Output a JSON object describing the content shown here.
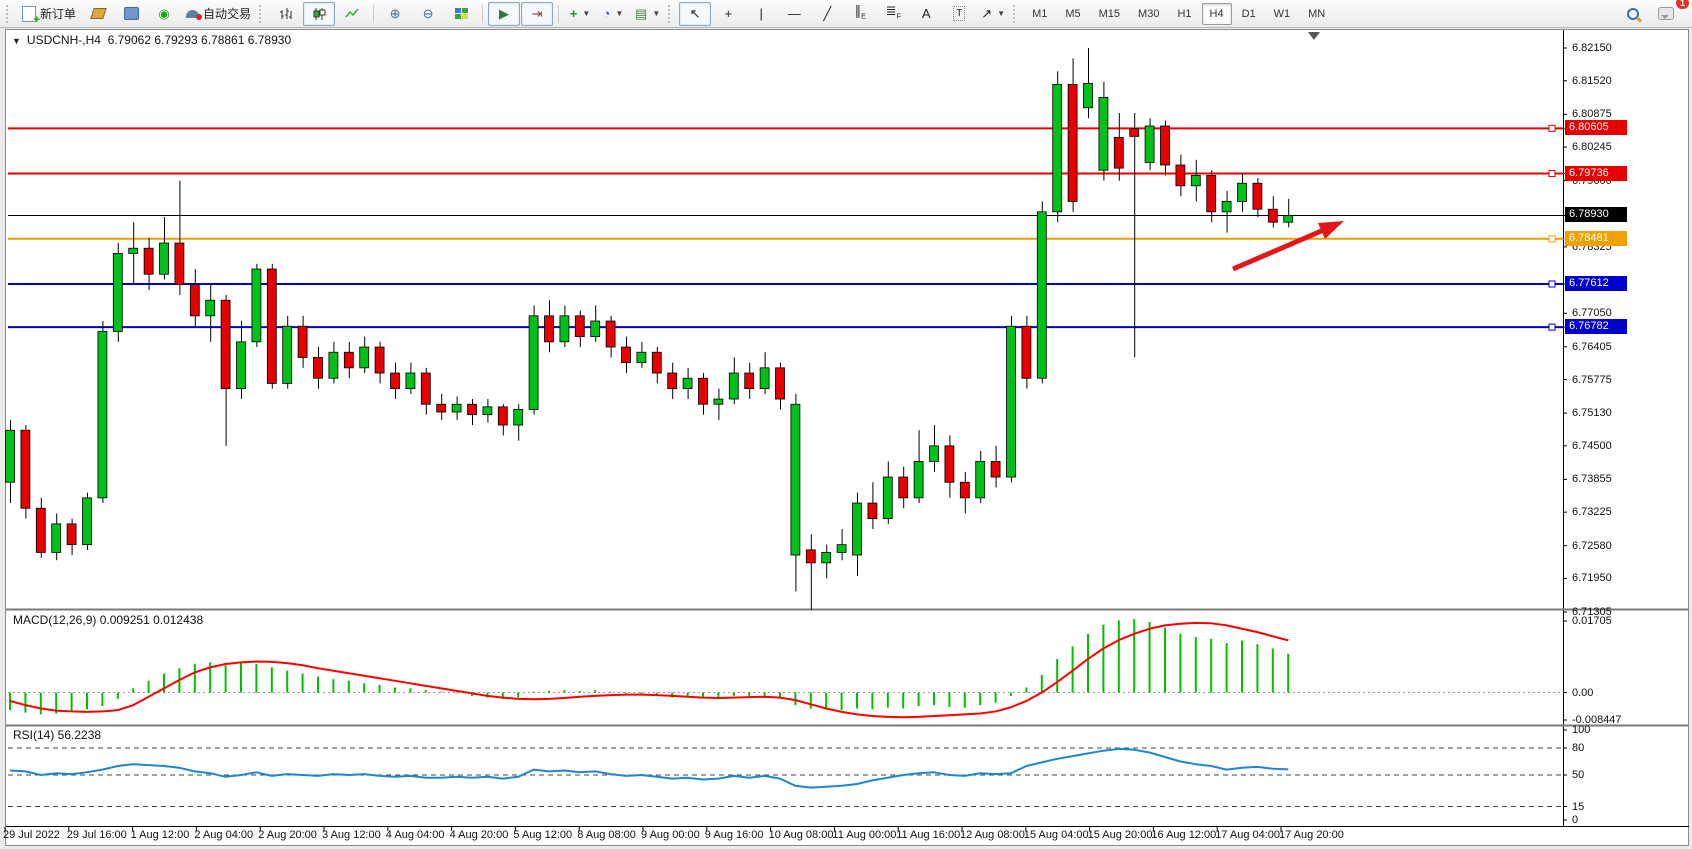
{
  "toolbar": {
    "new_order_label": "新订单",
    "autotrading_label": "自动交易",
    "timeframes": [
      "M1",
      "M5",
      "M15",
      "M30",
      "H1",
      "H4",
      "D1",
      "W1",
      "MN"
    ],
    "active_timeframe": "H4",
    "notification_count": "1"
  },
  "chart_header": {
    "title": "USDCNH-,H4",
    "quotes": "6.79062 6.79293 6.78861 6.78930"
  },
  "indicators": {
    "macd_label": "MACD(12,26,9) 0.009251 0.012438",
    "rsi_label": "RSI(14) 56.2238"
  },
  "colors": {
    "up": "#00c01a",
    "down": "#e60000",
    "macd_hist": "#00c000",
    "macd_signal": "#ff0000",
    "rsi_line": "#1e87cf",
    "arrow": "#e01818"
  },
  "chart_data": {
    "type": "candlestick",
    "symbol": "USDCNH-",
    "timeframe": "H4",
    "current_bar": {
      "open": "6.79062",
      "high": "6.79293",
      "low": "6.78861",
      "close": "6.78930"
    },
    "current_price": 6.7893,
    "ylim": [
      6.71305,
      6.8215
    ],
    "price_axis_ticks": [
      "6.82150",
      "6.81520",
      "6.80875",
      "6.80245",
      "6.79600",
      "6.78325",
      "6.77050",
      "6.76405",
      "6.75775",
      "6.75130",
      "6.74500",
      "6.73855",
      "6.73225",
      "6.72580",
      "6.71950",
      "6.71305"
    ],
    "levels": [
      {
        "label": "6.80605",
        "price": 6.80605,
        "color": "#e60000",
        "width": 2,
        "handle": true
      },
      {
        "label": "6.79736",
        "price": 6.79736,
        "color": "#e60000",
        "width": 2,
        "handle": true
      },
      {
        "label": "6.78930",
        "price": 6.7893,
        "color": "#000000",
        "width": 1,
        "handle": false
      },
      {
        "label": "6.78481",
        "price": 6.78481,
        "color": "#f0a000",
        "width": 2,
        "handle": true
      },
      {
        "label": "6.77612",
        "price": 6.77612,
        "color": "#0000cc",
        "width": 2,
        "handle": true
      },
      {
        "label": "6.76782",
        "price": 6.76782,
        "color": "#0000cc",
        "width": 2,
        "handle": true
      }
    ],
    "time_labels": [
      "29 Jul 2022",
      "29 Jul 16:00",
      "1 Aug 12:00",
      "2 Aug 04:00",
      "2 Aug 20:00",
      "3 Aug 12:00",
      "4 Aug 04:00",
      "4 Aug 20:00",
      "5 Aug 12:00",
      "8 Aug 08:00",
      "9 Aug 00:00",
      "9 Aug 16:00",
      "10 Aug 08:00",
      "11 Aug 00:00",
      "11 Aug 16:00",
      "12 Aug 08:00",
      "15 Aug 04:00",
      "15 Aug 20:00",
      "16 Aug 12:00",
      "17 Aug 04:00",
      "17 Aug 20:00"
    ],
    "candles": [
      [
        6.738,
        6.75,
        6.734,
        6.748
      ],
      [
        6.748,
        6.749,
        6.731,
        6.733
      ],
      [
        6.733,
        6.735,
        6.7235,
        6.7245
      ],
      [
        6.7245,
        6.732,
        6.723,
        6.73
      ],
      [
        6.73,
        6.731,
        6.724,
        6.726
      ],
      [
        6.726,
        6.736,
        6.725,
        6.735
      ],
      [
        6.735,
        6.769,
        6.734,
        6.767
      ],
      [
        6.767,
        6.784,
        6.765,
        6.782
      ],
      [
        6.782,
        6.788,
        6.776,
        6.783
      ],
      [
        6.783,
        6.785,
        6.775,
        6.778
      ],
      [
        6.778,
        6.789,
        6.777,
        6.784
      ],
      [
        6.784,
        6.796,
        6.774,
        6.776
      ],
      [
        6.776,
        6.779,
        6.768,
        6.77
      ],
      [
        6.77,
        6.776,
        6.765,
        6.773
      ],
      [
        6.773,
        6.774,
        6.745,
        6.756
      ],
      [
        6.756,
        6.769,
        6.754,
        6.765
      ],
      [
        6.765,
        6.78,
        6.764,
        6.779
      ],
      [
        6.779,
        6.78,
        6.756,
        6.757
      ],
      [
        6.757,
        6.77,
        6.756,
        6.768
      ],
      [
        6.768,
        6.77,
        6.76,
        6.762
      ],
      [
        6.762,
        6.764,
        6.756,
        6.758
      ],
      [
        6.758,
        6.765,
        6.757,
        6.763
      ],
      [
        6.763,
        6.765,
        6.758,
        6.76
      ],
      [
        6.76,
        6.766,
        6.759,
        6.764
      ],
      [
        6.764,
        6.765,
        6.757,
        6.759
      ],
      [
        6.759,
        6.761,
        6.754,
        6.756
      ],
      [
        6.756,
        6.761,
        6.755,
        6.759
      ],
      [
        6.759,
        6.76,
        6.751,
        6.753
      ],
      [
        6.753,
        6.755,
        6.75,
        6.7515
      ],
      [
        6.7515,
        6.7545,
        6.75,
        6.753
      ],
      [
        6.753,
        6.754,
        6.749,
        6.751
      ],
      [
        6.751,
        6.754,
        6.7495,
        6.7525
      ],
      [
        6.7525,
        6.753,
        6.747,
        6.749
      ],
      [
        6.749,
        6.753,
        6.746,
        6.752
      ],
      [
        6.752,
        6.772,
        6.751,
        6.77
      ],
      [
        6.77,
        6.773,
        6.763,
        6.765
      ],
      [
        6.765,
        6.772,
        6.764,
        6.77
      ],
      [
        6.77,
        6.771,
        6.764,
        6.766
      ],
      [
        6.766,
        6.772,
        6.765,
        6.769
      ],
      [
        6.769,
        6.77,
        6.762,
        6.764
      ],
      [
        6.764,
        6.766,
        6.759,
        6.761
      ],
      [
        6.761,
        6.765,
        6.76,
        6.763
      ],
      [
        6.763,
        6.764,
        6.757,
        6.759
      ],
      [
        6.759,
        6.761,
        6.754,
        6.756
      ],
      [
        6.756,
        6.76,
        6.754,
        6.758
      ],
      [
        6.758,
        6.759,
        6.751,
        6.753
      ],
      [
        6.753,
        6.756,
        6.75,
        6.754
      ],
      [
        6.754,
        6.762,
        6.753,
        6.759
      ],
      [
        6.759,
        6.761,
        6.754,
        6.756
      ],
      [
        6.756,
        6.763,
        6.755,
        6.76
      ],
      [
        6.76,
        6.761,
        6.752,
        6.754
      ],
      [
        6.724,
        6.755,
        6.717,
        6.753
      ],
      [
        6.725,
        6.728,
        6.7135,
        6.7225
      ],
      [
        6.7225,
        6.726,
        6.7195,
        6.7245
      ],
      [
        6.7245,
        6.729,
        6.723,
        6.726
      ],
      [
        6.724,
        6.736,
        6.72,
        6.734
      ],
      [
        6.734,
        6.738,
        6.729,
        6.731
      ],
      [
        6.731,
        6.742,
        6.73,
        6.739
      ],
      [
        6.739,
        6.741,
        6.733,
        6.735
      ],
      [
        6.735,
        6.748,
        6.734,
        6.742
      ],
      [
        6.742,
        6.749,
        6.74,
        6.745
      ],
      [
        6.745,
        6.747,
        6.735,
        6.738
      ],
      [
        6.738,
        6.74,
        6.732,
        6.735
      ],
      [
        6.735,
        6.744,
        6.734,
        6.742
      ],
      [
        6.742,
        6.745,
        6.737,
        6.739
      ],
      [
        6.739,
        6.77,
        6.738,
        6.768
      ],
      [
        6.768,
        6.77,
        6.756,
        6.758
      ],
      [
        6.758,
        6.792,
        6.757,
        6.79
      ],
      [
        6.79,
        6.817,
        6.788,
        6.8145
      ],
      [
        6.8145,
        6.8195,
        6.79,
        6.792
      ],
      [
        6.81,
        6.8215,
        6.808,
        6.8147
      ],
      [
        6.798,
        6.815,
        6.796,
        6.812
      ],
      [
        6.8043,
        6.809,
        6.796,
        6.7984
      ],
      [
        6.806,
        6.809,
        6.762,
        6.8045
      ],
      [
        6.7995,
        6.808,
        6.798,
        6.8065
      ],
      [
        6.8065,
        6.8075,
        6.797,
        6.799
      ],
      [
        6.799,
        6.801,
        6.793,
        6.795
      ],
      [
        6.795,
        6.8,
        6.792,
        6.797
      ],
      [
        6.797,
        6.798,
        6.788,
        6.79
      ],
      [
        6.79,
        6.794,
        6.786,
        6.792
      ],
      [
        6.792,
        6.7975,
        6.79,
        6.7955
      ],
      [
        6.7955,
        6.7965,
        6.789,
        6.7905
      ],
      [
        6.7905,
        6.793,
        6.787,
        6.788
      ],
      [
        6.788,
        6.7925,
        6.787,
        6.7893
      ]
    ],
    "macd": {
      "params": "12,26,9",
      "main_last": "0.009251",
      "signal_last": "0.012438",
      "axis": [
        "0.01705",
        "0.00",
        "-0.008447"
      ],
      "ylim": [
        -0.008447,
        0.01705
      ],
      "histogram": [
        -0.0042,
        -0.0048,
        -0.0052,
        -0.005,
        -0.0045,
        -0.004,
        -0.0032,
        -0.0015,
        0.001,
        0.0028,
        0.0045,
        0.0058,
        0.0068,
        0.0072,
        0.0065,
        0.007,
        0.0068,
        0.006,
        0.0052,
        0.0045,
        0.0038,
        0.0032,
        0.0028,
        0.0022,
        0.0018,
        0.0012,
        0.001,
        0.0006,
        0.0002,
        -0.0002,
        -0.0008,
        -0.0012,
        -0.0015,
        -0.0012,
        0.0002,
        0.0004,
        0.0006,
        0.0004,
        0.0006,
        0.0002,
        -0.0002,
        -0.0004,
        -0.0008,
        -0.0012,
        -0.001,
        -0.0014,
        -0.0012,
        -0.0008,
        -0.001,
        -0.0008,
        -0.0014,
        -0.003,
        -0.0038,
        -0.004,
        -0.0042,
        -0.0038,
        -0.004,
        -0.0036,
        -0.0038,
        -0.0032,
        -0.003,
        -0.0034,
        -0.0036,
        -0.003,
        -0.0024,
        -0.0008,
        0.0012,
        0.0042,
        0.008,
        0.011,
        0.014,
        0.0162,
        0.0172,
        0.0175,
        0.0168,
        0.0155,
        0.014,
        0.0132,
        0.0128,
        0.0118,
        0.0124,
        0.0115,
        0.0105,
        0.009251
      ],
      "signal": [
        -0.002,
        -0.003,
        -0.0038,
        -0.0043,
        -0.0045,
        -0.0046,
        -0.0045,
        -0.0042,
        -0.003,
        -0.001,
        0.001,
        0.003,
        0.0048,
        0.006,
        0.0068,
        0.0072,
        0.0074,
        0.0073,
        0.007,
        0.0065,
        0.0058,
        0.0052,
        0.0046,
        0.004,
        0.0034,
        0.0028,
        0.0022,
        0.0016,
        0.001,
        0.0004,
        -0.0002,
        -0.0008,
        -0.0012,
        -0.0015,
        -0.0016,
        -0.0015,
        -0.0013,
        -0.001,
        -0.0008,
        -0.0006,
        -0.0005,
        -0.0005,
        -0.0006,
        -0.0008,
        -0.001,
        -0.0012,
        -0.0013,
        -0.0012,
        -0.0011,
        -0.001,
        -0.0012,
        -0.0018,
        -0.0028,
        -0.0038,
        -0.0046,
        -0.0052,
        -0.0056,
        -0.0058,
        -0.0059,
        -0.0058,
        -0.0056,
        -0.0054,
        -0.0052,
        -0.005,
        -0.0045,
        -0.0035,
        -0.002,
        0.0,
        0.0025,
        0.0052,
        0.008,
        0.0105,
        0.0125,
        0.014,
        0.0152,
        0.016,
        0.0164,
        0.0166,
        0.0165,
        0.016,
        0.0152,
        0.0144,
        0.0134,
        0.012438
      ]
    },
    "rsi": {
      "period": "14",
      "last": "56.2238",
      "axis": [
        "100",
        "80",
        "50",
        "15",
        "0"
      ],
      "guide_levels": [
        80,
        50,
        15
      ],
      "ylim": [
        0,
        100
      ],
      "values": [
        55,
        54,
        50,
        52,
        51,
        53,
        56,
        60,
        62,
        61,
        60,
        58,
        54,
        52,
        48,
        50,
        53,
        49,
        51,
        50,
        49,
        51,
        50,
        51,
        49,
        48,
        49,
        47,
        47,
        48,
        47,
        48,
        46,
        48,
        56,
        54,
        55,
        53,
        54,
        51,
        49,
        50,
        48,
        46,
        47,
        45,
        46,
        49,
        47,
        49,
        46,
        38,
        36,
        37,
        38,
        40,
        44,
        47,
        50,
        52,
        53,
        50,
        49,
        52,
        51,
        52,
        60,
        64,
        68,
        71,
        74,
        77,
        79,
        78,
        75,
        70,
        65,
        62,
        60,
        56,
        58,
        59,
        57,
        56.2
      ]
    },
    "annotation_arrow": {
      "from": [
        1233,
        269
      ],
      "to": [
        1344,
        221
      ]
    }
  }
}
